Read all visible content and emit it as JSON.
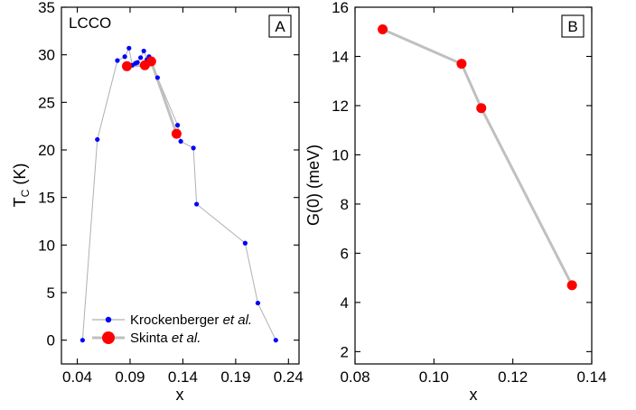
{
  "chart_data": [
    {
      "type": "scatter",
      "panel_label": "A",
      "annotation": "LCCO",
      "xlabel": "x",
      "ylabel_main": "T",
      "ylabel_sub": "C",
      "ylabel_rest": " (K)",
      "xlim": [
        0.025,
        0.25
      ],
      "ylim": [
        -2.5,
        35
      ],
      "xticks": [
        0.04,
        0.09,
        0.14,
        0.19,
        0.24
      ],
      "xtick_labels": [
        "0.04",
        "0.09",
        "0.14",
        "0.19",
        "0.24"
      ],
      "yticks": [
        0,
        5,
        10,
        15,
        20,
        25,
        30,
        35
      ],
      "ytick_labels": [
        "0",
        "5",
        "10",
        "15",
        "20",
        "25",
        "30",
        "35"
      ],
      "legend_position": "bottom-left",
      "series": [
        {
          "name": "Krockenberger",
          "name_italic": "et al.",
          "color": "#0000ff",
          "line_color": "#b0b0b0",
          "marker": "small-circle",
          "points": [
            [
              0.045,
              0.0
            ],
            [
              0.059,
              21.1
            ],
            [
              0.078,
              29.4
            ],
            [
              0.085,
              29.8
            ],
            [
              0.089,
              30.7
            ],
            [
              0.092,
              28.9
            ],
            [
              0.095,
              29.1
            ],
            [
              0.097,
              29.2
            ],
            [
              0.1,
              29.7
            ],
            [
              0.103,
              30.4
            ],
            [
              0.106,
              29.5
            ],
            [
              0.108,
              29.8
            ],
            [
              0.116,
              27.6
            ],
            [
              0.135,
              22.6
            ],
            [
              0.138,
              20.9
            ],
            [
              0.15,
              20.2
            ],
            [
              0.153,
              14.3
            ],
            [
              0.199,
              10.2
            ],
            [
              0.211,
              3.9
            ],
            [
              0.228,
              0.0
            ]
          ]
        },
        {
          "name": "Skinta",
          "name_italic": "et al.",
          "color": "#ff0000",
          "line_color": "#c0c0c0",
          "marker": "large-circle",
          "points": [
            [
              0.087,
              28.8
            ],
            [
              0.104,
              28.9
            ],
            [
              0.11,
              29.3
            ],
            [
              0.134,
              21.7
            ]
          ]
        }
      ]
    },
    {
      "type": "line",
      "panel_label": "B",
      "xlabel": "x",
      "ylabel": "G(0) (meV)",
      "xlim": [
        0.08,
        0.14
      ],
      "ylim": [
        1.5,
        16
      ],
      "xticks": [
        0.08,
        0.1,
        0.12,
        0.14
      ],
      "xtick_labels": [
        "0.08",
        "0.10",
        "0.12",
        "0.14"
      ],
      "yticks": [
        2,
        4,
        6,
        8,
        10,
        12,
        14,
        16
      ],
      "ytick_labels": [
        "2",
        "4",
        "6",
        "8",
        "10",
        "12",
        "14",
        "16"
      ],
      "series": [
        {
          "color": "#ff0000",
          "line_color": "#c0c0c0",
          "marker": "large-circle",
          "points": [
            [
              0.087,
              15.1
            ],
            [
              0.107,
              13.7
            ],
            [
              0.112,
              11.9
            ],
            [
              0.135,
              4.7
            ]
          ]
        }
      ]
    }
  ]
}
